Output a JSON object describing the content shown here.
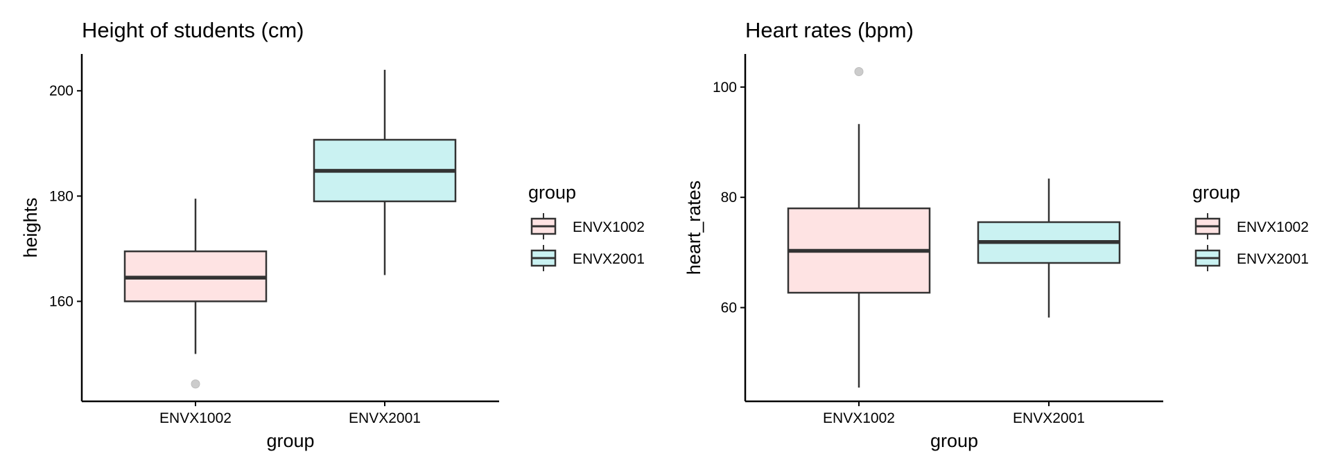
{
  "chart_data": [
    {
      "type": "boxplot",
      "title": "Height of students (cm)",
      "xlabel": "group",
      "ylabel": "heights",
      "ylim": [
        141,
        207
      ],
      "yticks": [
        160,
        180,
        200
      ],
      "categories": [
        "ENVX1002",
        "ENVX2001"
      ],
      "boxes": [
        {
          "category": "ENVX1002",
          "whisker_low": 150,
          "q1": 160,
          "median": 164.5,
          "q3": 169.5,
          "whisker_high": 179.5,
          "outliers": [
            144.3
          ],
          "fill": "#fee3e3"
        },
        {
          "category": "ENVX2001",
          "whisker_low": 165,
          "q1": 179,
          "median": 184.8,
          "q3": 190.7,
          "whisker_high": 204,
          "outliers": [],
          "fill": "#caf2f2"
        }
      ],
      "legend": {
        "title": "group",
        "items": [
          "ENVX1002",
          "ENVX2001"
        ],
        "position": "right"
      }
    },
    {
      "type": "boxplot",
      "title": "Heart rates (bpm)",
      "xlabel": "group",
      "ylabel": "heart_rates",
      "ylim": [
        43,
        106
      ],
      "yticks": [
        60,
        80,
        100
      ],
      "categories": [
        "ENVX1002",
        "ENVX2001"
      ],
      "boxes": [
        {
          "category": "ENVX1002",
          "whisker_low": 45.5,
          "q1": 62.7,
          "median": 70.3,
          "q3": 78,
          "whisker_high": 93.3,
          "outliers": [
            102.8
          ],
          "fill": "#fee3e3"
        },
        {
          "category": "ENVX2001",
          "whisker_low": 58.2,
          "q1": 68.1,
          "median": 71.9,
          "q3": 75.5,
          "whisker_high": 83.4,
          "outliers": [],
          "fill": "#caf2f2"
        }
      ],
      "legend": {
        "title": "group",
        "items": [
          "ENVX1002",
          "ENVX2001"
        ],
        "position": "right"
      }
    }
  ],
  "colors": {
    "envx1002_fill": "#fee3e3",
    "envx2001_fill": "#caf2f2",
    "box_stroke": "#333333",
    "outlier": "#cccccc",
    "axis": "#000000"
  }
}
